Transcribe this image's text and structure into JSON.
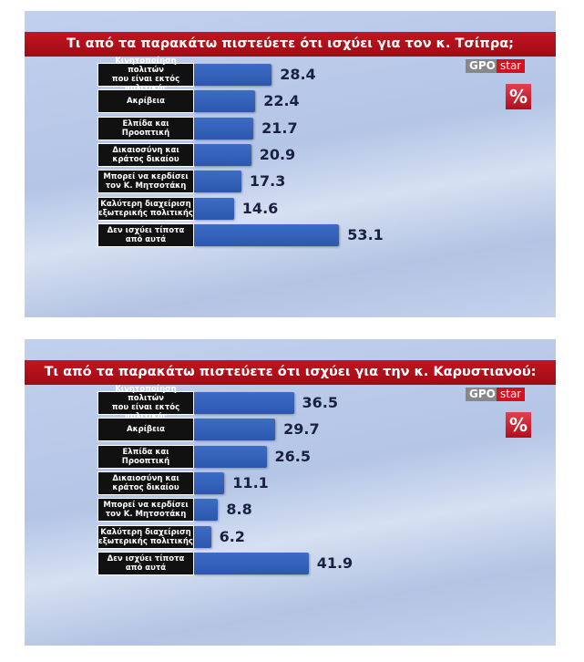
{
  "chart_data": [
    {
      "type": "bar",
      "title": "Τι από τα παρακάτω πιστεύετε ότι ισχύει για τον κ. Τσίπρα;",
      "brand": [
        "GPO",
        "star"
      ],
      "unit_badge": "%",
      "categories": [
        "Κινητοποίηση πολιτών\nπου είναι εκτός πολιτικής",
        "Ακρίβεια",
        "Ελπίδα και\nΠροοπτική",
        "Δικαιοσύνη και\nκράτος δικαίου",
        "Μπορεί να κερδίσει\nτον Κ. Μητσοτάκη",
        "Καλύτερη διαχείριση\nεξωτερικής πολιτικής",
        "Δεν ισχύει τίποτα\nαπό αυτά"
      ],
      "values": [
        28.4,
        22.4,
        21.7,
        20.9,
        17.3,
        14.6,
        53.1
      ],
      "color": "#3d6cc6"
    },
    {
      "type": "bar",
      "title": "Τι από τα παρακάτω πιστεύετε ότι ισχύει για την κ. Καρυστιανού:",
      "brand": [
        "GPO",
        "star"
      ],
      "unit_badge": "%",
      "categories": [
        "Κινητοποίηση πολιτών\nπου είναι εκτός πολιτικής",
        "Ακρίβεια",
        "Ελπίδα και\nΠροοπτική",
        "Δικαιοσύνη και\nκράτος δικαίου",
        "Μπορεί να κερδίσει\nτον Κ. Μητσοτάκη",
        "Καλύτερη διαχείριση\nεξωτερικής πολιτικής",
        "Δεν ισχύει τίποτα\nαπό αυτά"
      ],
      "values": [
        36.5,
        29.7,
        26.5,
        11.1,
        8.8,
        6.2,
        41.9
      ],
      "color": "#3d6cc6"
    }
  ]
}
